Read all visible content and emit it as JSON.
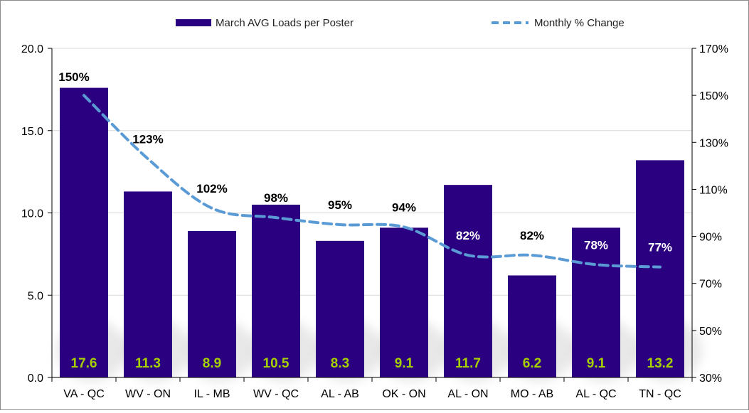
{
  "chart_data": {
    "type": "bar",
    "categories": [
      "VA - QC",
      "WV - ON",
      "IL - MB",
      "WV - QC",
      "AL - AB",
      "OK - ON",
      "AL - ON",
      "MO - AB",
      "AL - QC",
      "TN - QC"
    ],
    "series": [
      {
        "name": "March AVG Loads per Poster",
        "type": "bar",
        "axis": "left",
        "values": [
          17.6,
          11.3,
          8.9,
          10.5,
          8.3,
          9.1,
          11.7,
          6.2,
          9.1,
          13.2
        ],
        "labels": [
          "17.6",
          "11.3",
          "8.9",
          "10.5",
          "8.3",
          "9.1",
          "11.7",
          "6.2",
          "9.1",
          "13.2"
        ],
        "color": "#2a0080"
      },
      {
        "name": "Monthly % Change",
        "type": "line",
        "style": "dashed",
        "axis": "right",
        "values": [
          150,
          123,
          102,
          98,
          95,
          94,
          82,
          82,
          78,
          77
        ],
        "labels": [
          "150%",
          "123%",
          "102%",
          "98%",
          "95%",
          "94%",
          "82%",
          "82%",
          "78%",
          "77%"
        ],
        "label_colors": [
          "#000000",
          "#000000",
          "#000000",
          "#000000",
          "#000000",
          "#000000",
          "#ffffff",
          "#000000",
          "#ffffff",
          "#ffffff"
        ],
        "color": "#5b9bd5"
      }
    ],
    "y_left": {
      "ylim": [
        0,
        20
      ],
      "ticks": [
        0,
        5,
        10,
        15,
        20
      ],
      "tick_labels": [
        "0.0",
        "5.0",
        "10.0",
        "15.0",
        "20.0"
      ]
    },
    "y_right": {
      "ylim": [
        30,
        170
      ],
      "ticks": [
        30,
        50,
        70,
        90,
        110,
        130,
        150,
        170
      ],
      "tick_labels": [
        "30%",
        "50%",
        "70%",
        "90%",
        "110%",
        "130%",
        "150%",
        "170%"
      ]
    },
    "grid": true,
    "legend": "top-center",
    "title": "",
    "xlabel": "",
    "ylabel": ""
  }
}
